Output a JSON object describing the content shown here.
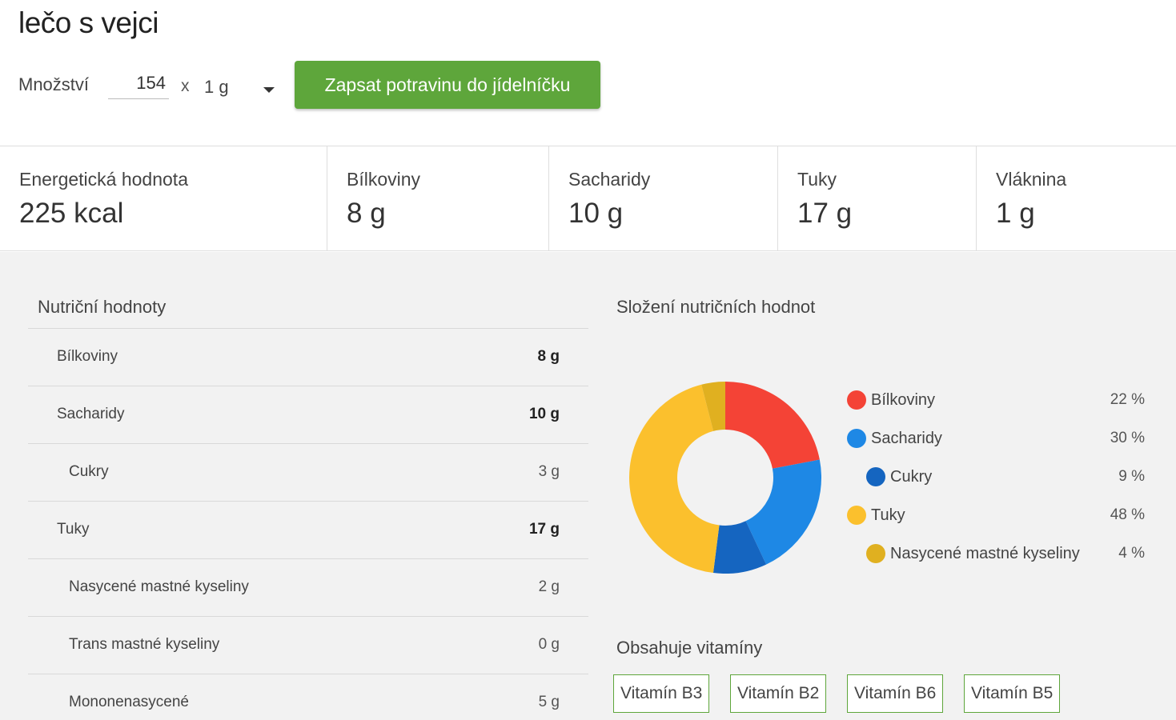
{
  "title": "lečo s vejci",
  "quantity": {
    "label": "Množství",
    "value": "154",
    "multiplier": "x",
    "unit": "1 g"
  },
  "add_button_label": "Zapsat potravinu do jídelníčku",
  "summary": [
    {
      "label": "Energetická hodnota",
      "value": "225 kcal"
    },
    {
      "label": "Bílkoviny",
      "value": "8 g"
    },
    {
      "label": "Sacharidy",
      "value": "10 g"
    },
    {
      "label": "Tuky",
      "value": "17 g"
    },
    {
      "label": "Vláknina",
      "value": "1 g"
    }
  ],
  "nutrition": {
    "title": "Nutriční hodnoty",
    "rows": [
      {
        "label": "Bílkoviny",
        "value": "8 g",
        "bold": true
      },
      {
        "label": "Sacharidy",
        "value": "10 g",
        "bold": true
      },
      {
        "label": "Cukry",
        "value": "3 g",
        "bold": false
      },
      {
        "label": "Tuky",
        "value": "17 g",
        "bold": true
      },
      {
        "label": "Nasycené mastné kyseliny",
        "value": "2 g",
        "bold": false
      },
      {
        "label": "Trans mastné kyseliny",
        "value": "0 g",
        "bold": false
      },
      {
        "label": "Mononenasycené",
        "value": "5 g",
        "bold": false
      }
    ]
  },
  "composition": {
    "title": "Složení nutričních hodnot",
    "legend": [
      {
        "label": "Bílkoviny",
        "percent": "22 %",
        "color": "#f44336"
      },
      {
        "label": "Sacharidy",
        "percent": "30 %",
        "color": "#1e88e5"
      },
      {
        "label": "Cukry",
        "percent": "9 %",
        "color": "#1565c0"
      },
      {
        "label": "Tuky",
        "percent": "48 %",
        "color": "#fbc02d"
      },
      {
        "label": "Nasycené mastné kyseliny",
        "percent": "4 %",
        "color": "#e0b020"
      }
    ]
  },
  "chart_data": {
    "type": "pie",
    "categories": [
      "Bílkoviny",
      "Sacharidy",
      "Cukry",
      "Tuky",
      "Nasycené mastné kyseliny"
    ],
    "values": [
      22,
      21,
      9,
      44,
      4
    ],
    "colors": [
      "#f44336",
      "#1e88e5",
      "#1565c0",
      "#fbc02d",
      "#e0b020"
    ],
    "donut": true
  },
  "vitamins": {
    "title": "Obsahuje vitamíny",
    "items": [
      "Vitamín B3",
      "Vitamín B2",
      "Vitamín B6",
      "Vitamín B5"
    ]
  }
}
